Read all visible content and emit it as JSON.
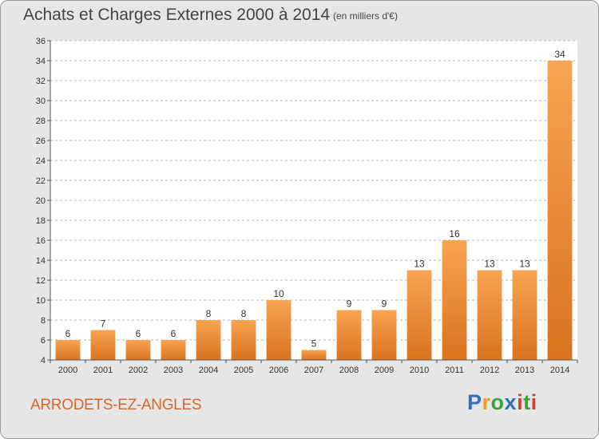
{
  "chart_data": {
    "type": "bar",
    "title": "Achats et Charges Externes 2000 à 2014",
    "subtitle": "(en milliers d'€)",
    "categories": [
      "2000",
      "2001",
      "2002",
      "2003",
      "2004",
      "2005",
      "2006",
      "2007",
      "2008",
      "2009",
      "2010",
      "2011",
      "2012",
      "2013",
      "2014"
    ],
    "values": [
      6,
      7,
      6,
      6,
      8,
      8,
      10,
      5,
      9,
      9,
      13,
      16,
      13,
      13,
      34
    ],
    "ylim": [
      4,
      36
    ],
    "yticks": [
      4,
      6,
      8,
      10,
      12,
      14,
      16,
      18,
      20,
      22,
      24,
      26,
      28,
      30,
      32,
      34,
      36
    ],
    "grid": true,
    "legend": "none"
  },
  "place_name": "ARRODETS-EZ-ANGLES",
  "logo": {
    "letters": [
      "P",
      "r",
      "o",
      "x",
      "i",
      "t",
      "i"
    ],
    "colors": [
      "#2f6fbf",
      "#f0a020",
      "#3aa040",
      "#2f6fbf",
      "#e03a2a",
      "#3aa040",
      "#e03a2a"
    ]
  },
  "colors": {
    "bar_light": "#f7a452",
    "bar_dark": "#d9731e",
    "grid": "#b8b8b8",
    "plot_bg": "#ffffff"
  }
}
